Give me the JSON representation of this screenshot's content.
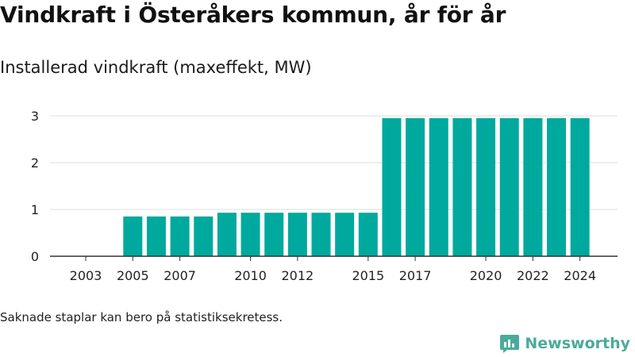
{
  "title": "Vindkraft i Österåkers kommun, år för år",
  "subtitle": "Installerad vindkraft (maxeffekt, MW)",
  "footnote": "Saknade staplar kan bero på statistiksekretess.",
  "brand": {
    "name": "Newsworthy",
    "logo_icon": "newsworthy-logo-icon",
    "color": "#4aab9b"
  },
  "colors": {
    "bar": "#00a99d",
    "grid": "#dddddd",
    "axis": "#333333"
  },
  "chart_data": {
    "type": "bar",
    "categories": [
      2003,
      2004,
      2005,
      2006,
      2007,
      2008,
      2009,
      2010,
      2011,
      2012,
      2013,
      2014,
      2015,
      2016,
      2017,
      2018,
      2019,
      2020,
      2021,
      2022,
      2023,
      2024
    ],
    "values": [
      null,
      null,
      0.85,
      0.85,
      0.85,
      0.85,
      0.93,
      0.93,
      0.93,
      0.93,
      0.93,
      0.93,
      0.93,
      2.95,
      2.95,
      2.95,
      2.95,
      2.95,
      2.95,
      2.95,
      2.95,
      2.95
    ],
    "xticks": [
      "2003",
      "2005",
      "2007",
      "2010",
      "2012",
      "2015",
      "2017",
      "2020",
      "2022",
      "2024"
    ],
    "yticks": [
      0,
      1,
      2,
      3
    ],
    "ylim": [
      0,
      3
    ],
    "grid": true,
    "legend": "none"
  }
}
